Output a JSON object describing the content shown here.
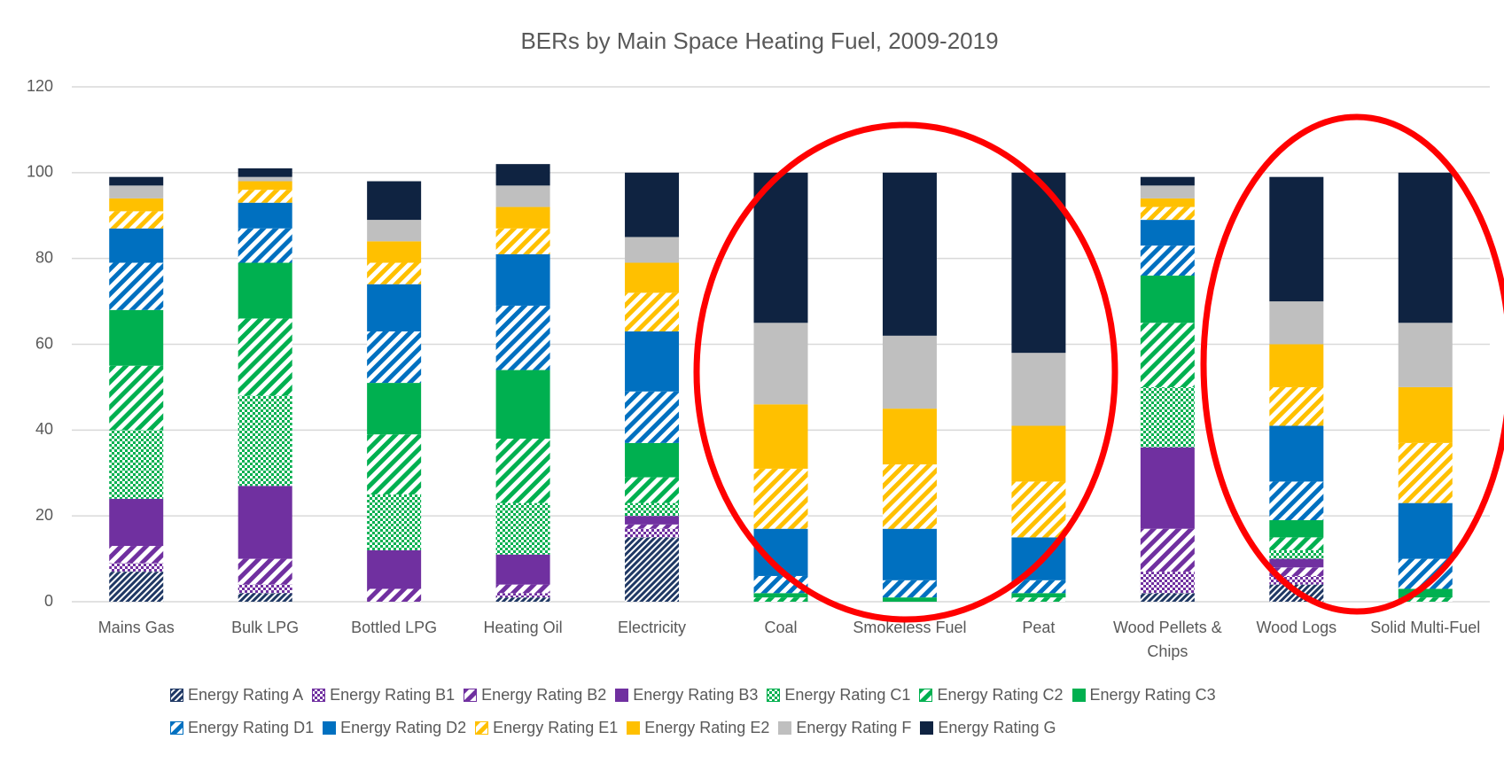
{
  "chart_data": {
    "type": "stacked-bar",
    "title": "BERs by Main Space Heating Fuel, 2009-2019",
    "categories": [
      "Mains Gas",
      "Bulk LPG",
      "Bottled LPG",
      "Heating Oil",
      "Electricity",
      "Coal",
      "Smokeless Fuel",
      "Peat",
      "Wood Pellets & Chips",
      "Wood Logs",
      "Solid Multi-Fuel"
    ],
    "ylim": [
      0,
      120
    ],
    "yticks": [
      0,
      20,
      40,
      60,
      80,
      100,
      120
    ],
    "grid": true,
    "legend": "bottom",
    "series": [
      {
        "name": "Energy Rating A",
        "color": "#1f3864",
        "pattern": "dense-diagonal",
        "values": [
          7,
          2,
          0,
          1,
          15,
          0,
          0,
          0,
          2,
          4,
          0
        ]
      },
      {
        "name": "Energy Rating B1",
        "color": "#7030a0",
        "pattern": "checker",
        "values": [
          2,
          2,
          0,
          1,
          2,
          0,
          0,
          0,
          5,
          2,
          0
        ]
      },
      {
        "name": "Energy Rating B2",
        "color": "#7030a0",
        "pattern": "diagonal",
        "values": [
          4,
          6,
          3,
          2,
          1,
          0,
          0,
          0,
          10,
          2,
          0
        ]
      },
      {
        "name": "Energy Rating B3",
        "color": "#7030a0",
        "pattern": "solid",
        "values": [
          11,
          17,
          9,
          7,
          2,
          0,
          0,
          0,
          19,
          2,
          0
        ]
      },
      {
        "name": "Energy Rating C1",
        "color": "#00b050",
        "pattern": "checker",
        "values": [
          16,
          21,
          13,
          12,
          3,
          0,
          0,
          0,
          14,
          2,
          0
        ]
      },
      {
        "name": "Energy Rating C2",
        "color": "#00b050",
        "pattern": "diagonal",
        "values": [
          15,
          18,
          14,
          15,
          6,
          1,
          0,
          1,
          15,
          3,
          1
        ]
      },
      {
        "name": "Energy Rating C3",
        "color": "#00b050",
        "pattern": "solid",
        "values": [
          13,
          13,
          12,
          16,
          8,
          1,
          1,
          1,
          11,
          4,
          2
        ]
      },
      {
        "name": "Energy Rating D1",
        "color": "#0070c0",
        "pattern": "diagonal",
        "values": [
          11,
          8,
          12,
          15,
          12,
          4,
          4,
          3,
          7,
          9,
          7
        ]
      },
      {
        "name": "Energy Rating D2",
        "color": "#0070c0",
        "pattern": "solid",
        "values": [
          8,
          6,
          11,
          12,
          14,
          11,
          12,
          10,
          6,
          13,
          13
        ]
      },
      {
        "name": "Energy Rating E1",
        "color": "#ffc000",
        "pattern": "diagonal",
        "values": [
          4,
          3,
          5,
          6,
          9,
          14,
          15,
          13,
          3,
          9,
          14
        ]
      },
      {
        "name": "Energy Rating E2",
        "color": "#ffc000",
        "pattern": "solid",
        "values": [
          3,
          2,
          5,
          5,
          7,
          15,
          13,
          13,
          2,
          10,
          13
        ]
      },
      {
        "name": "Energy Rating F",
        "color": "#bfbfbf",
        "pattern": "solid",
        "values": [
          3,
          1,
          5,
          5,
          6,
          19,
          17,
          17,
          3,
          10,
          15
        ]
      },
      {
        "name": "Energy Rating G",
        "color": "#0f2341",
        "pattern": "solid",
        "values": [
          2,
          2,
          9,
          5,
          15,
          35,
          38,
          42,
          2,
          29,
          35
        ]
      }
    ]
  }
}
